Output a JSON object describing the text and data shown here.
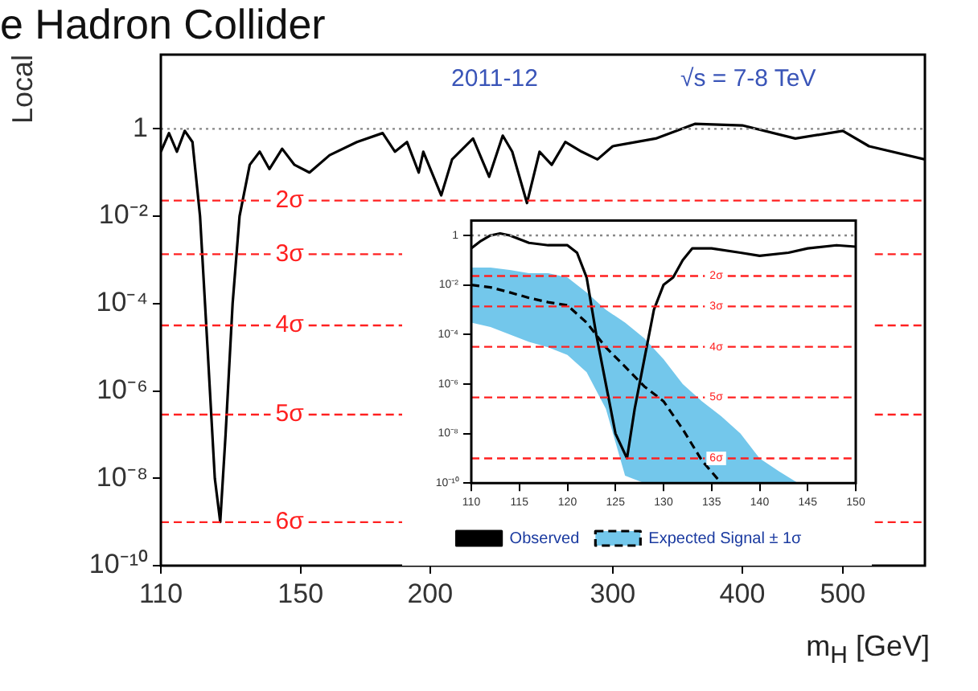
{
  "chart_data": [
    {
      "type": "line",
      "title": "e Hadron Collider",
      "ylabel": "Local",
      "xlabel": "m$_{H}$ [GeV]",
      "annotations": [
        "2011-12",
        "√s = 7-8 TeV"
      ],
      "log": "xy",
      "grid": false,
      "legend": false,
      "marker": "none",
      "xlim": [
        110,
        600
      ],
      "xticks": [
        110,
        150,
        200,
        300,
        400,
        500
      ],
      "ylim": [
        1e-10,
        50
      ],
      "yticks": [
        1,
        {
          "value": 0.01,
          "label": "10⁻²"
        },
        {
          "value": 0.0001,
          "label": "10⁻⁴"
        },
        {
          "value": 1e-06,
          "label": "10⁻⁶"
        },
        {
          "value": 1e-08,
          "label": "10⁻⁸"
        },
        {
          "value": 1e-10,
          "label": "10⁻¹⁰"
        }
      ],
      "ref_lines": [
        {
          "axis": "y",
          "value": 1,
          "color": "#888888",
          "line_style": "dotted"
        },
        {
          "axis": "y",
          "value": 0.0228,
          "label": "2σ",
          "color": "#ff2020",
          "line_style": "dashed"
        },
        {
          "axis": "y",
          "value": 0.00135,
          "label": "3σ",
          "color": "#ff2020",
          "line_style": "dashed"
        },
        {
          "axis": "y",
          "value": 3.17e-05,
          "label": "4σ",
          "color": "#ff2020",
          "line_style": "dashed"
        },
        {
          "axis": "y",
          "value": 2.87e-07,
          "label": "5σ",
          "color": "#ff2020",
          "line_style": "dashed"
        },
        {
          "axis": "y",
          "value": 9.9e-10,
          "label": "6σ",
          "color": "#ff2020",
          "line_style": "dashed"
        }
      ],
      "x": [
        110,
        112,
        114,
        116,
        118,
        120,
        122,
        124,
        125.5,
        127,
        129,
        131,
        134,
        137,
        140,
        144,
        148,
        153,
        160,
        170,
        180,
        185,
        190,
        195,
        197,
        205,
        210,
        220,
        228,
        235,
        240,
        248,
        255,
        262,
        270,
        280,
        290,
        300,
        330,
        360,
        400,
        450,
        500,
        530,
        600
      ],
      "series": [
        {
          "color": "#000000",
          "values": [
            0.3,
            0.8,
            0.3,
            0.9,
            0.5,
            0.01,
            1e-05,
            1e-08,
            1e-09,
            1e-07,
            0.0001,
            0.01,
            0.15,
            0.3,
            0.12,
            0.35,
            0.15,
            0.1,
            0.25,
            0.5,
            0.8,
            0.3,
            0.5,
            0.1,
            0.3,
            0.03,
            0.2,
            0.6,
            0.08,
            0.7,
            0.3,
            0.02,
            0.3,
            0.15,
            0.5,
            0.3,
            0.2,
            0.4,
            0.6,
            1.3,
            1.2,
            0.6,
            0.9,
            0.4,
            0.2
          ]
        }
      ]
    },
    {
      "type": "line",
      "log": "y",
      "grid": false,
      "legend": "bottom",
      "marker": "none",
      "xlim": [
        110,
        150
      ],
      "xticks": [
        110,
        115,
        120,
        125,
        130,
        135,
        140,
        145,
        150
      ],
      "ylim": [
        1e-10,
        4
      ],
      "yticks": [
        1,
        {
          "value": 0.01,
          "label": "10⁻²"
        },
        {
          "value": 0.0001,
          "label": "10⁻⁴"
        },
        {
          "value": 1e-06,
          "label": "10⁻⁶"
        },
        {
          "value": 1e-08,
          "label": "10⁻⁸"
        },
        {
          "value": 1e-10,
          "label": "10⁻¹⁰"
        }
      ],
      "ref_lines": [
        {
          "axis": "y",
          "value": 1,
          "color": "#888888",
          "line_style": "dotted"
        },
        {
          "axis": "y",
          "value": 0.0228,
          "label": "2σ",
          "color": "#ff2020",
          "line_style": "dashed"
        },
        {
          "axis": "y",
          "value": 0.00135,
          "label": "3σ",
          "color": "#ff2020",
          "line_style": "dashed"
        },
        {
          "axis": "y",
          "value": 3.17e-05,
          "label": "4σ",
          "color": "#ff2020",
          "line_style": "dashed"
        },
        {
          "axis": "y",
          "value": 2.87e-07,
          "label": "5σ",
          "color": "#ff2020",
          "line_style": "dashed"
        },
        {
          "axis": "y",
          "value": 9.9e-10,
          "label": "6σ",
          "color": "#ff2020",
          "line_style": "dashed"
        }
      ],
      "series": [
        {
          "name": "Observed",
          "color": "#000000",
          "x": [
            110,
            111,
            112,
            113,
            114,
            116,
            118,
            120,
            121,
            122,
            123,
            124,
            125,
            126.2,
            127,
            128,
            129,
            130,
            131,
            132,
            133,
            135,
            138,
            140,
            143,
            145,
            148,
            150
          ],
          "values": [
            0.3,
            0.6,
            1,
            1.2,
            1,
            0.5,
            0.4,
            0.4,
            0.2,
            0.02,
            0.0001,
            1e-06,
            1e-08,
            1e-09,
            1e-07,
            1e-05,
            0.001,
            0.01,
            0.02,
            0.1,
            0.3,
            0.3,
            0.2,
            0.15,
            0.2,
            0.3,
            0.4,
            0.35
          ]
        },
        {
          "name": "Expected Signal ± 1σ",
          "color": "#000000",
          "line_style": "dashed",
          "x": [
            110,
            112,
            114,
            116,
            118,
            120,
            122,
            124,
            126,
            128,
            130,
            132,
            134,
            136,
            138,
            140,
            142,
            144
          ],
          "values": [
            0.01,
            0.008,
            0.005,
            0.003,
            0.002,
            0.0015,
            0.0003,
            3e-05,
            5e-06,
            8e-07,
            2e-07,
            1.5e-08,
            8e-10,
            1e-10,
            null,
            null,
            null,
            null
          ],
          "upper": [
            0.05,
            0.05,
            0.04,
            0.03,
            0.03,
            0.02,
            0.005,
            0.001,
            0.0003,
            7e-05,
            1e-05,
            1e-06,
            2e-07,
            5e-08,
            1e-08,
            1e-09,
            3e-10,
            1e-10
          ],
          "lower": [
            0.0003,
            0.0002,
            0.0001,
            5e-05,
            3e-05,
            1.5e-05,
            3e-06,
            1e-07,
            2e-10,
            1e-10,
            1e-10,
            1e-10,
            1e-10,
            1e-10,
            1e-10,
            1e-10,
            1e-10,
            1e-10
          ]
        }
      ]
    }
  ]
}
